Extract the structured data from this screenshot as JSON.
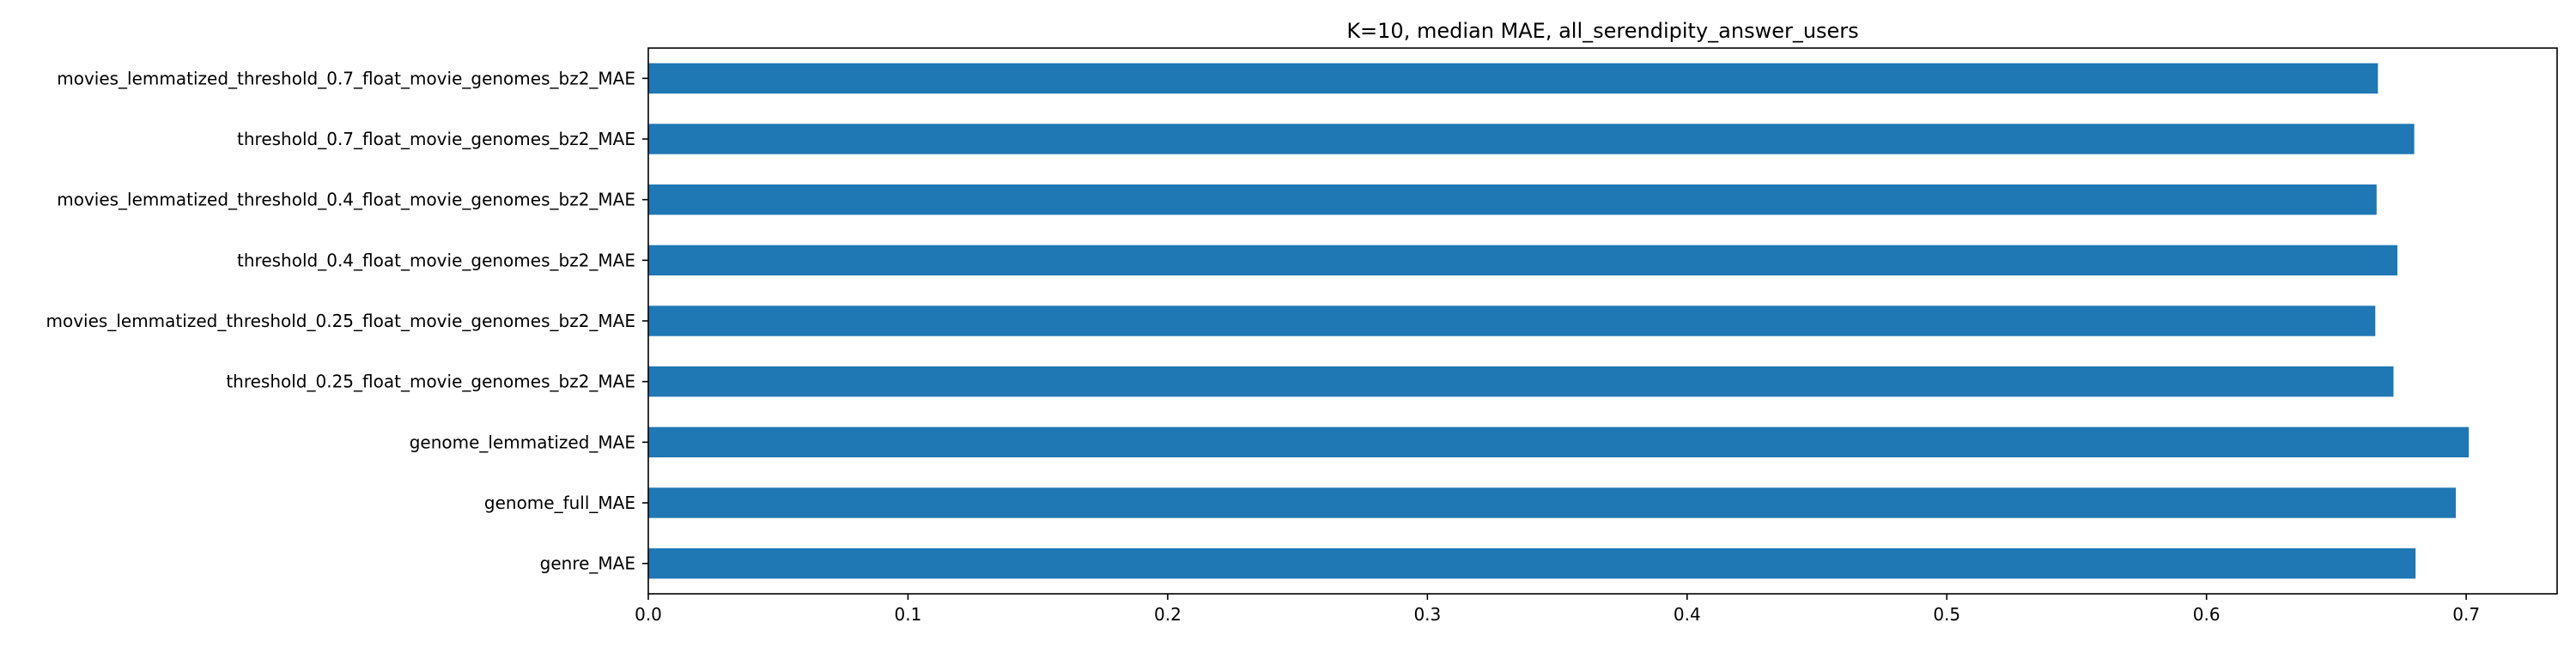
{
  "chart_data": {
    "type": "bar",
    "orientation": "horizontal",
    "title": "K=10, median MAE, all_serendipity_answer_users",
    "xlabel": "",
    "ylabel": "",
    "xlim": [
      0,
      0.735
    ],
    "grid": false,
    "legend": "none",
    "bar_color": "#1f77b4",
    "categories": [
      "movies_lemmatized_threshold_0.7_float_movie_genomes_bz2_MAE",
      "threshold_0.7_float_movie_genomes_bz2_MAE",
      "movies_lemmatized_threshold_0.4_float_movie_genomes_bz2_MAE",
      "threshold_0.4_float_movie_genomes_bz2_MAE",
      "movies_lemmatized_threshold_0.25_float_movie_genomes_bz2_MAE",
      "threshold_0.25_float_movie_genomes_bz2_MAE",
      "genome_lemmatized_MAE",
      "genome_full_MAE",
      "genre_MAE"
    ],
    "values": [
      0.666,
      0.68,
      0.6655,
      0.6735,
      0.665,
      0.672,
      0.701,
      0.696,
      0.6805
    ],
    "x_ticks": [
      {
        "value": 0.0,
        "label": "0.0"
      },
      {
        "value": 0.1,
        "label": "0.1"
      },
      {
        "value": 0.2,
        "label": "0.2"
      },
      {
        "value": 0.3,
        "label": "0.3"
      },
      {
        "value": 0.4,
        "label": "0.4"
      },
      {
        "value": 0.5,
        "label": "0.5"
      },
      {
        "value": 0.6,
        "label": "0.6"
      },
      {
        "value": 0.7,
        "label": "0.7"
      }
    ]
  }
}
